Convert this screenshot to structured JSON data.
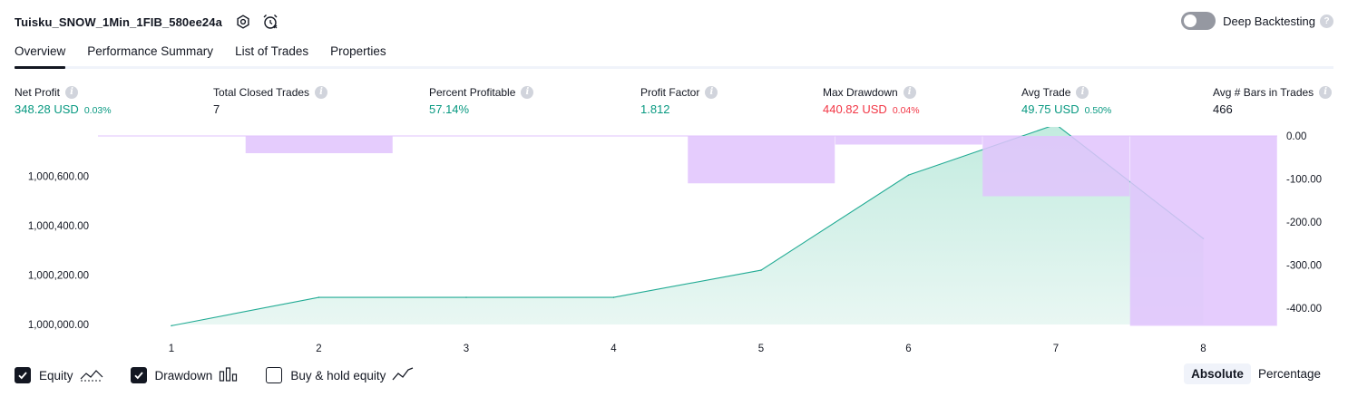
{
  "header": {
    "strategy_name": "Tuisku_SNOW_1Min_1FIB_580ee24a",
    "deep_backtesting_label": "Deep Backtesting",
    "deep_backtesting_enabled": false
  },
  "tabs": [
    {
      "label": "Overview",
      "active": true
    },
    {
      "label": "Performance Summary",
      "active": false
    },
    {
      "label": "List of Trades",
      "active": false
    },
    {
      "label": "Properties",
      "active": false
    }
  ],
  "metrics": {
    "net_profit": {
      "label": "Net Profit",
      "value": "348.28 USD",
      "pct": "0.03%"
    },
    "total_closed_trades": {
      "label": "Total Closed Trades",
      "value": "7"
    },
    "percent_profitable": {
      "label": "Percent Profitable",
      "value": "57.14%"
    },
    "profit_factor": {
      "label": "Profit Factor",
      "value": "1.812"
    },
    "max_drawdown": {
      "label": "Max Drawdown",
      "value": "440.82 USD",
      "pct": "0.04%"
    },
    "avg_trade": {
      "label": "Avg Trade",
      "value": "49.75 USD",
      "pct": "0.50%"
    },
    "avg_bars": {
      "label": "Avg # Bars in Trades",
      "value": "466"
    }
  },
  "colors": {
    "equity_line": "#22ab94",
    "equity_fill": "#cfeee6",
    "drawdown_bar": "#e1c3fd",
    "positive": "#089981",
    "negative": "#f23645"
  },
  "legend": [
    {
      "label": "Equity",
      "checked": true,
      "icon": "equity-line-icon"
    },
    {
      "label": "Drawdown",
      "checked": true,
      "icon": "drawdown-bars-icon"
    },
    {
      "label": "Buy & hold equity",
      "checked": false,
      "icon": "buy-hold-line-icon"
    }
  ],
  "mode": {
    "absolute_label": "Absolute",
    "percentage_label": "Percentage",
    "selected": "Absolute"
  },
  "chart_data": {
    "type": "line",
    "x": [
      1,
      2,
      3,
      4,
      5,
      6,
      7,
      8
    ],
    "x_tick_labels": [
      "1",
      "2",
      "3",
      "4",
      "5",
      "6",
      "7",
      "8"
    ],
    "series": [
      {
        "name": "Equity",
        "type": "area",
        "axis": "left",
        "values": [
          999995,
          1000110,
          1000110,
          1000110,
          1000220,
          1000605,
          1000810,
          1000348
        ]
      },
      {
        "name": "Drawdown",
        "type": "bar",
        "axis": "right",
        "values": [
          0,
          -40,
          0,
          0,
          -110,
          -20,
          -140,
          -441
        ]
      }
    ],
    "left_axis": {
      "ticks": [
        1000000,
        1000200,
        1000400,
        1000600
      ],
      "tick_labels": [
        "1,000,000.00",
        "1,000,200.00",
        "1,000,400.00",
        "1,000,600.00"
      ]
    },
    "right_axis": {
      "ticks": [
        0,
        -100,
        -200,
        -300,
        -400
      ],
      "tick_labels": [
        "0.00",
        "-100.00",
        "-200.00",
        "-300.00",
        "-400.00"
      ]
    },
    "grid": false
  }
}
